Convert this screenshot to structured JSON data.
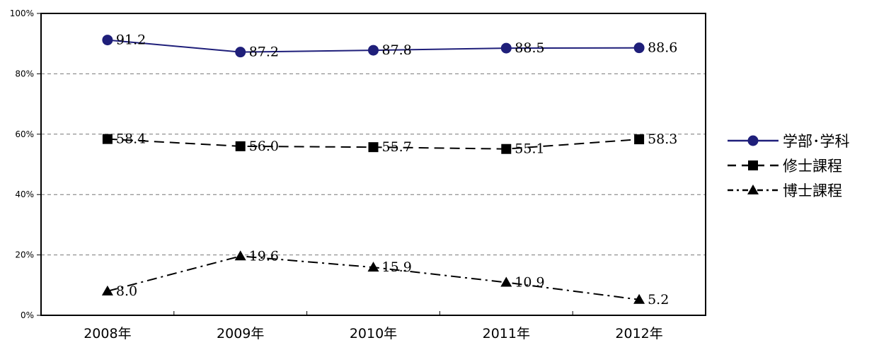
{
  "chart_data": {
    "type": "line",
    "categories": [
      "2008年",
      "2009年",
      "2010年",
      "2011年",
      "2012年"
    ],
    "y_ticks": [
      "0%",
      "20%",
      "40%",
      "60%",
      "80%",
      "100%"
    ],
    "ylim": [
      0,
      100
    ],
    "grid": "horizontal-dashed",
    "legend_position": "right",
    "series": [
      {
        "name": "学部･学科",
        "values": [
          91.2,
          87.2,
          87.8,
          88.5,
          88.6
        ],
        "labels": [
          "91.2",
          "87.2",
          "87.8",
          "88.5",
          "88.6"
        ],
        "color": "#1f1f7a",
        "marker": "circle",
        "dash": "solid"
      },
      {
        "name": "修士課程",
        "values": [
          58.4,
          56.0,
          55.7,
          55.1,
          58.3
        ],
        "labels": [
          "58.4",
          "56.0",
          "55.7",
          "55.1",
          "58.3"
        ],
        "color": "#000000",
        "marker": "square",
        "dash": "dashed"
      },
      {
        "name": "博士課程",
        "values": [
          8.0,
          19.6,
          15.9,
          10.9,
          5.2
        ],
        "labels": [
          "8.0",
          "19.6",
          "15.9",
          "10.9",
          "5.2"
        ],
        "color": "#000000",
        "marker": "triangle",
        "dash": "dashdot"
      }
    ]
  }
}
